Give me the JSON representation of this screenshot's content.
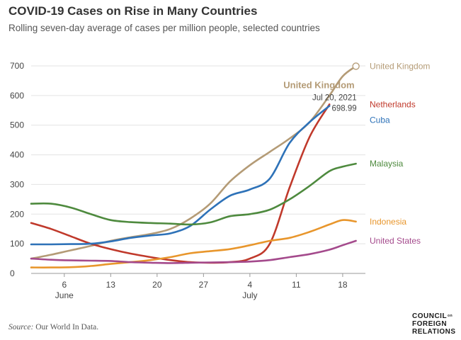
{
  "title": "COVID-19 Cases on Rise in Many Countries",
  "subtitle": "Rolling seven-day average of cases per million people, selected countries",
  "source_label": "Source:",
  "source_text": "Our World In Data.",
  "logo": {
    "line1": "COUNCIL",
    "line1_sup": "on",
    "line2": "FOREIGN",
    "line3": "RELATIONS"
  },
  "chart_data": {
    "type": "line",
    "title": "COVID-19 Cases on Rise in Many Countries",
    "subtitle": "Rolling seven-day average of cases per million people, selected countries",
    "xlabel": "",
    "ylabel": "",
    "xlim": [
      "2021-06-01",
      "2021-07-21"
    ],
    "ylim": [
      0,
      700
    ],
    "yticks": [
      0,
      100,
      200,
      300,
      400,
      500,
      600,
      700
    ],
    "xticks": [
      {
        "date": "2021-06-06",
        "label": "6",
        "month": "June"
      },
      {
        "date": "2021-06-13",
        "label": "13",
        "month": ""
      },
      {
        "date": "2021-06-20",
        "label": "20",
        "month": ""
      },
      {
        "date": "2021-06-27",
        "label": "27",
        "month": ""
      },
      {
        "date": "2021-07-04",
        "label": "4",
        "month": "July"
      },
      {
        "date": "2021-07-11",
        "label": "11",
        "month": ""
      },
      {
        "date": "2021-07-18",
        "label": "18",
        "month": ""
      }
    ],
    "grid": true,
    "legend": "inline labels at line ends",
    "x": [
      "2021-06-01",
      "2021-06-04",
      "2021-06-07",
      "2021-06-10",
      "2021-06-13",
      "2021-06-16",
      "2021-06-19",
      "2021-06-22",
      "2021-06-25",
      "2021-06-28",
      "2021-07-01",
      "2021-07-04",
      "2021-07-07",
      "2021-07-10",
      "2021-07-13",
      "2021-07-16",
      "2021-07-18",
      "2021-07-20"
    ],
    "series": [
      {
        "name": "United Kingdom",
        "color": "#B49B76",
        "values": [
          50,
          63,
          78,
          93,
          110,
          122,
          133,
          150,
          185,
          235,
          310,
          365,
          410,
          455,
          510,
          600,
          665,
          698.99
        ]
      },
      {
        "name": "Netherlands",
        "color": "#C0392B",
        "values": [
          170,
          150,
          125,
          100,
          82,
          67,
          55,
          45,
          38,
          36,
          38,
          50,
          100,
          290,
          460,
          570,
          null,
          null
        ]
      },
      {
        "name": "Cuba",
        "color": "#2E72B8",
        "values": [
          98,
          98,
          99,
          100,
          108,
          120,
          128,
          135,
          160,
          215,
          262,
          283,
          320,
          440,
          510,
          565,
          null,
          null
        ]
      },
      {
        "name": "Malaysia",
        "color": "#4E8A3E",
        "values": [
          235,
          235,
          222,
          200,
          180,
          173,
          170,
          168,
          165,
          172,
          193,
          200,
          215,
          250,
          295,
          345,
          360,
          370
        ]
      },
      {
        "name": "Indonesia",
        "color": "#E8962C",
        "values": [
          20,
          20,
          21,
          25,
          32,
          38,
          45,
          55,
          68,
          75,
          82,
          95,
          110,
          120,
          140,
          165,
          180,
          175
        ]
      },
      {
        "name": "United States",
        "color": "#A44A8C",
        "values": [
          50,
          46,
          44,
          43,
          42,
          38,
          36,
          35,
          36,
          37,
          38,
          40,
          45,
          55,
          65,
          80,
          95,
          110
        ]
      }
    ],
    "annotation": {
      "series": "United Kingdom",
      "title": "United Kingdom",
      "date_label": "Jul 20, 2021",
      "value_label": "698.99"
    }
  }
}
